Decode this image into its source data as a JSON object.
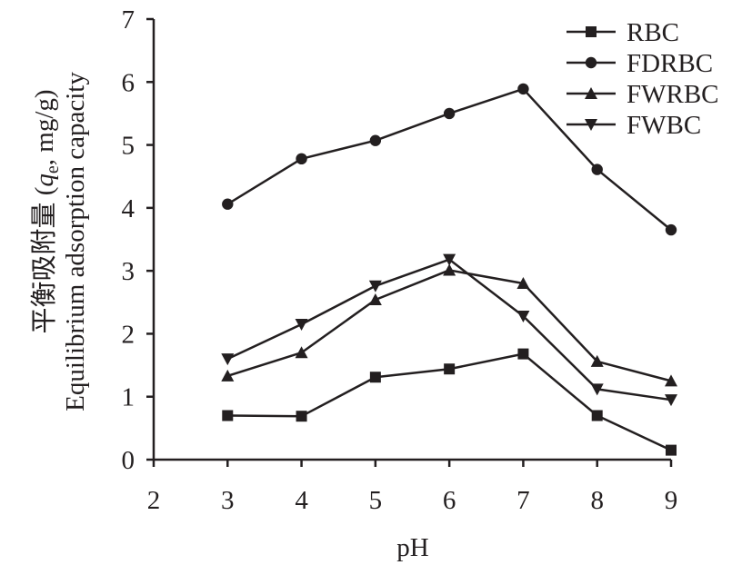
{
  "chart_data": {
    "type": "line",
    "xlabel": "pH",
    "ylabel_cn": "平衡吸附量 (",
    "ylabel_q": "q",
    "ylabel_sub": "e",
    "ylabel_unit": ", mg/g)",
    "ylabel_en": "Equilibrium adsorption capacity",
    "xlim": [
      2,
      9
    ],
    "ylim": [
      0,
      7
    ],
    "x_ticks": [
      "2",
      "3",
      "4",
      "5",
      "6",
      "7",
      "8",
      "9"
    ],
    "y_ticks": [
      "0",
      "1",
      "2",
      "3",
      "4",
      "5",
      "6",
      "7"
    ],
    "grid": false,
    "legend_position": "top-right",
    "x": [
      3,
      4,
      5,
      6,
      7,
      8,
      9
    ],
    "series": [
      {
        "name": "RBC",
        "marker": "square",
        "values": [
          0.7,
          0.69,
          1.31,
          1.44,
          1.68,
          0.7,
          0.15
        ]
      },
      {
        "name": "FDRBC",
        "marker": "circle",
        "values": [
          4.06,
          4.78,
          5.07,
          5.5,
          5.89,
          4.61,
          3.65
        ]
      },
      {
        "name": "FWRBC",
        "marker": "triangle-up",
        "values": [
          1.33,
          1.7,
          2.54,
          3.01,
          2.8,
          1.56,
          1.25
        ]
      },
      {
        "name": "FWBC",
        "marker": "triangle-down",
        "values": [
          1.6,
          2.15,
          2.76,
          3.18,
          2.28,
          1.12,
          0.95
        ]
      }
    ],
    "line_color": "#231f20"
  }
}
